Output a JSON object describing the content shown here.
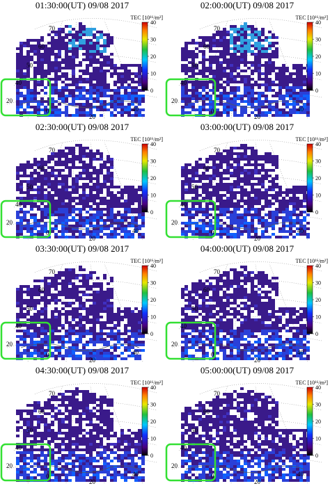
{
  "colorbar": {
    "label": "TEC [10¹⁶/m²]",
    "range": [
      0,
      40
    ],
    "ticks": [
      0,
      10,
      20,
      30,
      40
    ]
  },
  "lat_labels": [
    "70",
    "60",
    "50",
    "40",
    "20"
  ],
  "lon_labels": [
    "0",
    "20",
    "40"
  ],
  "panels": [
    {
      "title": "01:30:00(UT)   09/08 2017"
    },
    {
      "title": "02:00:00(UT)   09/08 2017"
    },
    {
      "title": "02:30:00(UT)   09/08 2017"
    },
    {
      "title": "03:00:00(UT)   09/08 2017"
    },
    {
      "title": "03:30:00(UT)   09/08 2017"
    },
    {
      "title": "04:00:00(UT)   09/08 2017"
    },
    {
      "title": "04:30:00(UT)   09/08 2017"
    },
    {
      "title": "05:00:00(UT)   09/08 2017"
    }
  ]
}
